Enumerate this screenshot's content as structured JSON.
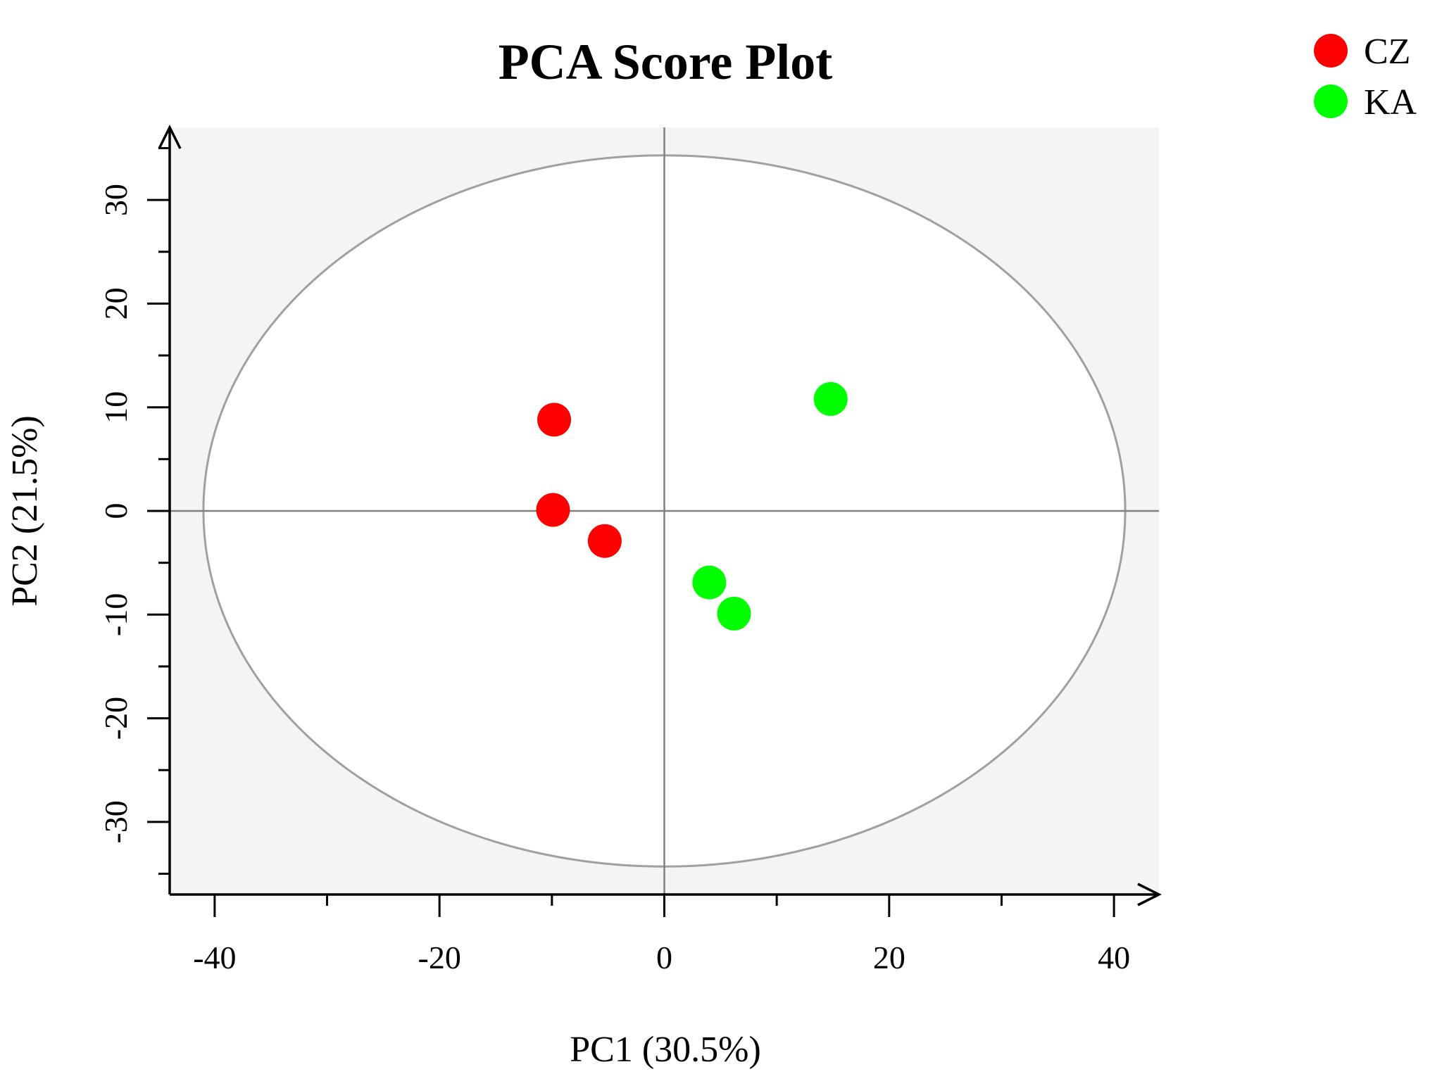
{
  "chart_data": {
    "type": "scatter",
    "title": "PCA Score Plot",
    "xlabel": "PC1 (30.5%)",
    "ylabel": "PC2 (21.5%)",
    "xlim": [
      -44,
      44
    ],
    "ylim": [
      -37,
      37
    ],
    "x_ticks": [
      -40,
      -20,
      0,
      20,
      40
    ],
    "y_ticks": [
      -30,
      -20,
      -10,
      0,
      10,
      20,
      30
    ],
    "x_ticks_minor": [
      -30,
      -10,
      10,
      30
    ],
    "y_ticks_minor": [
      -35,
      -25,
      -15,
      -5,
      5,
      15,
      25,
      35
    ],
    "grid": false,
    "legend_position": "top-right",
    "confidence_ellipse": {
      "cx": 0,
      "cy": 0,
      "rx": 41,
      "ry": 34.3,
      "color": "#a0a0a0"
    },
    "series": [
      {
        "name": "CZ",
        "color": "#ff0000",
        "points": [
          {
            "x": -9.8,
            "y": 8.8
          },
          {
            "x": -9.9,
            "y": 0.1
          },
          {
            "x": -5.3,
            "y": -2.9
          }
        ]
      },
      {
        "name": "KA",
        "color": "#00ff00",
        "points": [
          {
            "x": 14.8,
            "y": 10.8
          },
          {
            "x": 4.0,
            "y": -6.9
          },
          {
            "x": 6.2,
            "y": -9.9
          }
        ]
      }
    ]
  },
  "colors": {
    "panel_background": "#f4f4f4",
    "ellipse_fill": "#ffffff",
    "zero_lines": "#808080",
    "axis": "#000000"
  }
}
